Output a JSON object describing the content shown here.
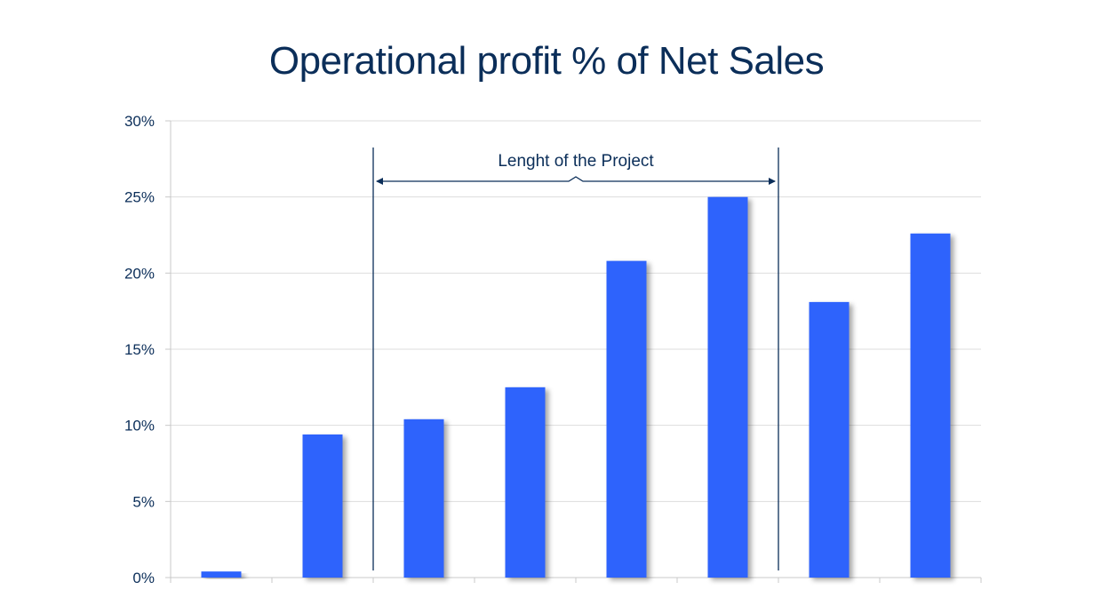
{
  "chart_data": {
    "type": "bar",
    "title": "Operational profit % of Net Sales",
    "categories": [
      "",
      "",
      "",
      "",
      "",
      "",
      "",
      ""
    ],
    "values": [
      0.4,
      9.4,
      10.4,
      12.5,
      20.8,
      25.0,
      18.1,
      22.6
    ],
    "ylim": [
      0,
      30
    ],
    "yticks": [
      0,
      5,
      10,
      15,
      20,
      25,
      30
    ],
    "ytick_suffix": "%",
    "grid": true,
    "legend": "none",
    "annotation": {
      "label": "Lenght of the Project",
      "from_index": 2,
      "to_index": 5
    },
    "colors": {
      "bar": "#2f63fc",
      "text": "#0b2e59",
      "grid": "#dddddd",
      "axis": "#c8c8c8",
      "annotation": "#0b2e59"
    }
  }
}
